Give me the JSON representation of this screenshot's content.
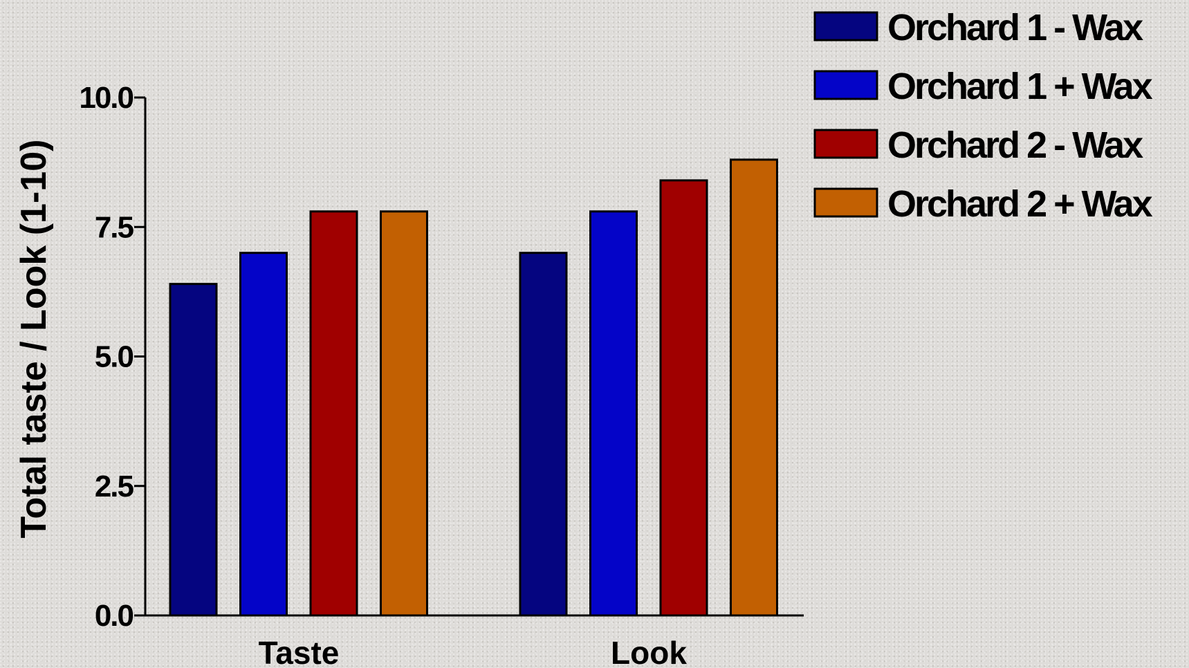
{
  "chart_data": {
    "type": "bar",
    "categories": [
      "Taste",
      "Look"
    ],
    "series": [
      {
        "name": "Orchard 1 - Wax",
        "color": "#050580",
        "values": [
          6.4,
          7.0
        ]
      },
      {
        "name": "Orchard 1 + Wax",
        "color": "#0404c8",
        "values": [
          7.0,
          7.8
        ]
      },
      {
        "name": "Orchard 2 - Wax",
        "color": "#a00000",
        "values": [
          7.8,
          8.4
        ]
      },
      {
        "name": "Orchard 2 + Wax",
        "color": "#c26002",
        "values": [
          7.8,
          8.8
        ]
      }
    ],
    "ylabel": "Total taste / Look (1-10)",
    "ylim": [
      0,
      10
    ],
    "yticks": [
      "0.0",
      "2.5",
      "5.0",
      "7.5",
      "10.0"
    ],
    "legend_position": "top-right",
    "grid": false
  }
}
